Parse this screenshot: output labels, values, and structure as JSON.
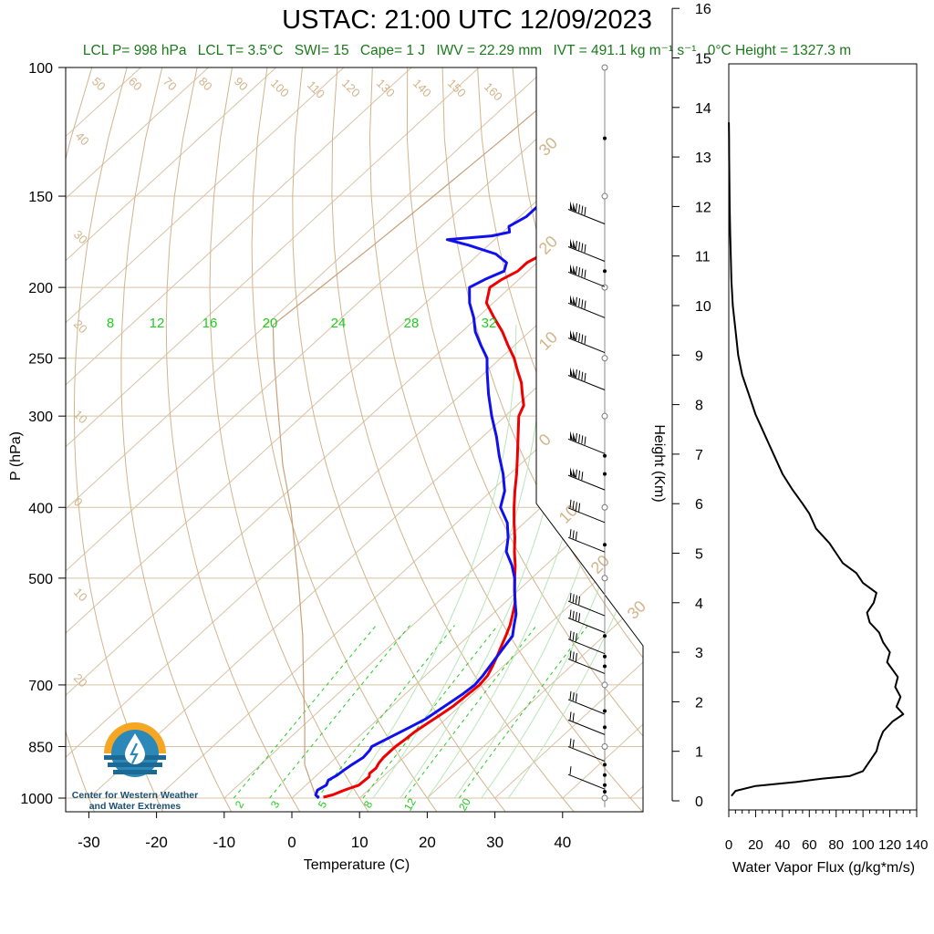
{
  "title": "USTAC: 21:00 UTC 12/09/2023",
  "stats": {
    "lcl_p": "LCL P= 998 hPa",
    "lcl_t": "LCL T= 3.5°C",
    "swi": "SWI= 15",
    "cape": "Cape= 1 J",
    "iwv": "IWV = 22.29 mm",
    "ivt": "IVT = 491.1 kg m⁻¹ s⁻¹",
    "zero_height": "0°C Height = 1327.3 m"
  },
  "logo": {
    "line1": "Center for Western Weather",
    "line2": "and Water Extremes"
  },
  "colors": {
    "temperature": "#ee0000",
    "dewpoint": "#1010ee",
    "dry_adiabat": "#d2b48c",
    "mixing_ratio": "#22cc22",
    "stats_text": "#1a7a1a"
  },
  "chart_data": [
    {
      "type": "line",
      "name": "skew-t",
      "xlabel": "Temperature (C)",
      "ylabel": "P (hPa)",
      "log_pressure_axis": true,
      "ylim": [
        1000,
        100
      ],
      "x_ticks": [
        "-30",
        "-20",
        "-10",
        "0",
        "10",
        "20",
        "30",
        "40"
      ],
      "y_ticks": [
        {
          "p": 100,
          "label": "100"
        },
        {
          "p": 150,
          "label": "150"
        },
        {
          "p": 200,
          "label": "200"
        },
        {
          "p": 250,
          "label": "250"
        },
        {
          "p": 300,
          "label": "300"
        },
        {
          "p": 400,
          "label": "400"
        },
        {
          "p": 500,
          "label": "500"
        },
        {
          "p": 700,
          "label": "700"
        },
        {
          "p": 850,
          "label": "850"
        },
        {
          "p": 1000,
          "label": "1000"
        }
      ],
      "temperature": {
        "p": [
          997,
          990,
          975,
          960,
          945,
          935,
          925,
          910,
          895,
          880,
          860,
          850,
          830,
          810,
          790,
          770,
          750,
          720,
          700,
          680,
          660,
          640,
          620,
          600,
          580,
          560,
          540,
          520,
          500,
          480,
          460,
          440,
          420,
          400,
          380,
          360,
          340,
          320,
          300,
          290,
          280,
          270,
          260,
          250,
          240,
          230,
          220,
          210,
          200,
          195,
          190,
          185,
          180,
          175,
          172,
          168,
          165,
          160,
          155,
          150
        ],
        "t": [
          4.5,
          5.5,
          6.5,
          7.8,
          7.9,
          8.0,
          7.5,
          7.6,
          7.2,
          7.0,
          7.0,
          7.0,
          7.3,
          7.5,
          8.0,
          8.5,
          9.0,
          9.3,
          9.5,
          9.2,
          8.4,
          7.5,
          6.5,
          5.5,
          4.4,
          3.0,
          1.5,
          -0.5,
          -2.5,
          -4.5,
          -6.8,
          -9.0,
          -11.5,
          -14.0,
          -16.5,
          -19.0,
          -21.8,
          -24.8,
          -28.0,
          -29.0,
          -31.0,
          -33.0,
          -35.5,
          -38.0,
          -41.0,
          -44.0,
          -47.5,
          -51.0,
          -53.0,
          -52.5,
          -51.5,
          -51.5,
          -50.5,
          -48.0,
          -44.0,
          -42.0,
          -38.0,
          -36.0,
          -32.0,
          -30.0
        ]
      },
      "dewpoint": {
        "p": [
          1000,
          990,
          975,
          960,
          945,
          930,
          915,
          900,
          880,
          860,
          850,
          830,
          800,
          780,
          760,
          740,
          720,
          700,
          680,
          660,
          640,
          620,
          600,
          580,
          560,
          540,
          520,
          500,
          480,
          460,
          440,
          420,
          400,
          380,
          360,
          340,
          320,
          300,
          280,
          260,
          250,
          240,
          230,
          220,
          210,
          200,
          195,
          190,
          185,
          180,
          175,
          172,
          170,
          168,
          165,
          160,
          155,
          152,
          150
        ],
        "t": [
          4.0,
          3.0,
          2.5,
          3.0,
          2.5,
          3.0,
          3.2,
          3.5,
          4.0,
          3.8,
          3.5,
          4.5,
          6.0,
          7.0,
          7.5,
          8.0,
          8.5,
          8.8,
          8.5,
          8.0,
          7.5,
          7.0,
          6.5,
          5.0,
          3.5,
          1.5,
          -0.5,
          -2.5,
          -5.0,
          -8.0,
          -10.0,
          -12.5,
          -16.0,
          -18.0,
          -21.0,
          -24.5,
          -28.0,
          -32.0,
          -36.0,
          -40.0,
          -42.0,
          -45.0,
          -48.0,
          -50.5,
          -53.5,
          -56.0,
          -55.0,
          -53.5,
          -54.5,
          -57.5,
          -63.0,
          -67.0,
          -61.0,
          -59.0,
          -60.0,
          -59.0,
          -59.0,
          -56.0,
          -56.5
        ]
      },
      "parcel": {
        "p": [
          998,
          900,
          800,
          700,
          600,
          500,
          400,
          350,
          300,
          250,
          225,
          200,
          175,
          150,
          125,
          100
        ],
        "t": [
          3.5,
          -3.5,
          -9.5,
          -16.5,
          -24.5,
          -34.5,
          -47.0,
          -55.0,
          -63.5,
          -73.5,
          -79.0,
          -78.0,
          -77.0,
          -76.0,
          -75.0,
          -74.0
        ]
      },
      "dry_adiabat_labels": [
        "50",
        "60",
        "70",
        "80",
        "90",
        "100",
        "110",
        "120",
        "130",
        "140",
        "150",
        "160",
        "40",
        "30",
        "20",
        "10",
        "0",
        "10",
        "20"
      ],
      "mixing_ratio_labels_top": [
        "8",
        "12",
        "16",
        "20",
        "24",
        "28",
        "32"
      ],
      "mixing_ratio_labels_bottom": [
        "2",
        "3",
        "5",
        "8",
        "12",
        "20"
      ],
      "right_side_labels": [
        "30",
        "20",
        "10",
        "0",
        "10",
        "20",
        "30"
      ]
    },
    {
      "type": "line",
      "name": "water-vapor-flux-profile",
      "xlabel": "Water Vapor Flux (g/kg*m/s)",
      "ylabel": "Height (Km)",
      "xlim": [
        0,
        140
      ],
      "ylim": [
        0,
        16
      ],
      "x_ticks": [
        "0",
        "20",
        "40",
        "60",
        "80",
        "100",
        "120",
        "140"
      ],
      "y_ticks": [
        "0",
        "1",
        "2",
        "3",
        "4",
        "5",
        "6",
        "7",
        "8",
        "9",
        "10",
        "11",
        "12",
        "13",
        "14",
        "15",
        "16"
      ],
      "series": [
        {
          "height_km": [
            0.1,
            0.2,
            0.3,
            0.38,
            0.45,
            0.5,
            0.6,
            0.8,
            1.0,
            1.2,
            1.4,
            1.6,
            1.75,
            1.9,
            2.1,
            2.3,
            2.5,
            2.8,
            3.0,
            3.2,
            3.4,
            3.6,
            3.8,
            4.0,
            4.2,
            4.4,
            4.6,
            4.8,
            5.0,
            5.2,
            5.5,
            5.8,
            6.0,
            6.3,
            6.6,
            6.9,
            7.2,
            7.5,
            7.8,
            8.2,
            8.6,
            9.0,
            9.5,
            10.0,
            10.5,
            11.0,
            11.5,
            12.0,
            12.5,
            13.0,
            13.4,
            13.7
          ],
          "flux": [
            2,
            5,
            20,
            50,
            70,
            90,
            100,
            105,
            110,
            112,
            115,
            122,
            130,
            125,
            128,
            124,
            126,
            118,
            120,
            115,
            112,
            105,
            103,
            108,
            110,
            100,
            95,
            85,
            80,
            75,
            65,
            60,
            55,
            47,
            40,
            35,
            30,
            25,
            20,
            15,
            10,
            7,
            5,
            3,
            2,
            1.5,
            1,
            0.7,
            0.5,
            0.3,
            0.2,
            0.1
          ]
        }
      ]
    }
  ]
}
